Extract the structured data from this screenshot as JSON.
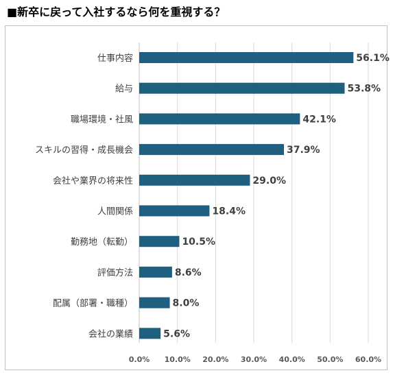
{
  "title": "■新卒に戻って入社するなら何を重視する？",
  "chart_data": {
    "type": "bar",
    "orientation": "horizontal",
    "categories": [
      "仕事内容",
      "給与",
      "職場環境・社風",
      "スキルの習得・成長機会",
      "会社や業界の将来性",
      "人間関係",
      "勤務地（転勤）",
      "評価方法",
      "配属（部署・職種）",
      "会社の業績"
    ],
    "values": [
      56.1,
      53.8,
      42.1,
      37.9,
      29.0,
      18.4,
      10.5,
      8.6,
      8.0,
      5.6
    ],
    "value_labels": [
      "56.1%",
      "53.8%",
      "42.1%",
      "37.9%",
      "29.0%",
      "18.4%",
      "10.5%",
      "8.6%",
      "8.0%",
      "5.6%"
    ],
    "xlim": [
      0,
      60
    ],
    "x_ticks": [
      0,
      10,
      20,
      30,
      40,
      50,
      60
    ],
    "x_tick_labels": [
      "0.0%",
      "10.0%",
      "20.0%",
      "30.0%",
      "40.0%",
      "50.0%",
      "60.0%"
    ],
    "bar_color": "#1f5f7f",
    "gridlines": true,
    "grid_color": "#d9d9d9"
  }
}
